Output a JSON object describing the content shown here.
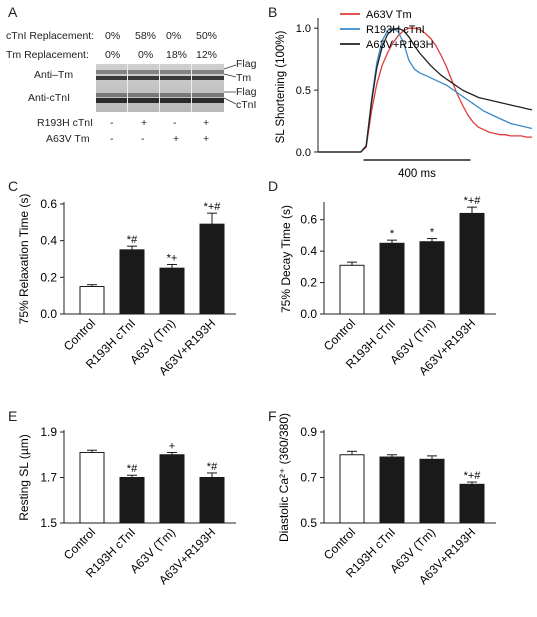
{
  "panels": {
    "A": "A",
    "B": "B",
    "C": "C",
    "D": "D",
    "E": "E",
    "F": "F"
  },
  "blot": {
    "rows": [
      {
        "label": "cTnI Replacement:",
        "values": [
          "0%",
          "58%",
          "0%",
          "50%"
        ]
      },
      {
        "label": "Tm Replacement:",
        "values": [
          "0%",
          "0%",
          "18%",
          "12%"
        ]
      }
    ],
    "band_labels_left": [
      "Anti–Tm",
      "Anti-cTnI"
    ],
    "band_labels_right": [
      "Flag",
      "Tm",
      "Flag",
      "cTnI"
    ],
    "mutants": [
      {
        "label": "R193H cTnI",
        "values": [
          "-",
          "+",
          "-",
          "+"
        ]
      },
      {
        "label": "A63V Tm",
        "values": [
          "-",
          "-",
          "+",
          "+"
        ]
      }
    ]
  },
  "chart_data": [
    {
      "panel": "B",
      "type": "line",
      "ylabel": "SL Shortening (100%)",
      "yticks": [
        "0.0",
        "0.5",
        "1.0"
      ],
      "ylim": [
        0,
        1.05
      ],
      "scale_bar_label": "400 ms",
      "series": [
        {
          "name": "A63V Tm",
          "color": "#e03a3a",
          "x": [
            0,
            100,
            140,
            160,
            180,
            200,
            220,
            240,
            260,
            280,
            300,
            320,
            340,
            360,
            380,
            400,
            420,
            440,
            460,
            480,
            500,
            520,
            540,
            560,
            580,
            600,
            620,
            640,
            660,
            680,
            700,
            720,
            740,
            760,
            780,
            800
          ],
          "y": [
            0,
            0,
            0,
            0,
            0.04,
            0.33,
            0.55,
            0.7,
            0.8,
            0.88,
            0.94,
            0.98,
            1.0,
            1.0,
            0.99,
            0.96,
            0.92,
            0.86,
            0.78,
            0.69,
            0.58,
            0.47,
            0.38,
            0.3,
            0.24,
            0.2,
            0.18,
            0.16,
            0.15,
            0.14,
            0.14,
            0.13,
            0.13,
            0.13,
            0.12,
            0.12
          ]
        },
        {
          "name": "R193H cTnI",
          "color": "#3a89c9",
          "x": [
            0,
            100,
            140,
            160,
            180,
            200,
            220,
            240,
            260,
            280,
            300,
            320,
            340,
            360,
            380,
            400,
            420,
            440,
            460,
            480,
            500,
            520,
            540,
            560,
            580,
            600,
            620,
            640,
            660,
            680,
            700,
            720,
            740,
            760,
            780,
            800
          ],
          "y": [
            0,
            0,
            0,
            0,
            0.05,
            0.42,
            0.72,
            0.9,
            0.98,
            1.0,
            0.97,
            0.88,
            0.74,
            0.67,
            0.64,
            0.62,
            0.6,
            0.58,
            0.56,
            0.54,
            0.51,
            0.48,
            0.45,
            0.42,
            0.39,
            0.36,
            0.33,
            0.31,
            0.29,
            0.27,
            0.25,
            0.23,
            0.22,
            0.21,
            0.2,
            0.19
          ]
        },
        {
          "name": "A63V+R193H",
          "color": "#222222",
          "x": [
            0,
            100,
            140,
            160,
            180,
            200,
            220,
            240,
            260,
            280,
            300,
            320,
            340,
            360,
            380,
            400,
            420,
            440,
            460,
            480,
            500,
            520,
            540,
            560,
            580,
            600,
            620,
            640,
            660,
            680,
            700,
            720,
            740,
            760,
            780,
            800
          ],
          "y": [
            0,
            0,
            0,
            0,
            0.05,
            0.4,
            0.68,
            0.85,
            0.95,
            0.99,
            1.0,
            0.98,
            0.93,
            0.86,
            0.8,
            0.75,
            0.7,
            0.66,
            0.62,
            0.59,
            0.56,
            0.53,
            0.5,
            0.48,
            0.46,
            0.44,
            0.43,
            0.42,
            0.41,
            0.4,
            0.39,
            0.38,
            0.37,
            0.36,
            0.35,
            0.34
          ]
        }
      ]
    },
    {
      "panel": "C",
      "type": "bar",
      "ylabel": "75% Relaxation Time (s)",
      "categories": [
        "Control",
        "R193H cTnI",
        "A63V (Tm)",
        "A63V+R193H"
      ],
      "values": [
        0.15,
        0.35,
        0.25,
        0.49
      ],
      "errors": [
        0.01,
        0.02,
        0.02,
        0.06
      ],
      "ylim": [
        0,
        0.6
      ],
      "yticks": [
        "0.0",
        "0.2",
        "0.4",
        "0.6"
      ],
      "significance": [
        "",
        "*#",
        "*+",
        "*+#"
      ]
    },
    {
      "panel": "D",
      "type": "bar",
      "ylabel": "75% Decay Time (s)",
      "categories": [
        "Control",
        "R193H cTnI",
        "A63V (Tm)",
        "A63V+R193H"
      ],
      "values": [
        0.31,
        0.45,
        0.46,
        0.64
      ],
      "errors": [
        0.02,
        0.02,
        0.02,
        0.04
      ],
      "ylim": [
        0,
        0.7
      ],
      "yticks": [
        "0.0",
        "0.2",
        "0.4",
        "0.6"
      ],
      "significance": [
        "",
        "*",
        "*",
        "*+#"
      ]
    },
    {
      "panel": "E",
      "type": "bar",
      "ylabel": "Resting SL (µm)",
      "categories": [
        "Control",
        "R193H cTnI",
        "A63V (Tm)",
        "A63V+R193H"
      ],
      "values": [
        1.81,
        1.7,
        1.8,
        1.7
      ],
      "errors": [
        0.01,
        0.01,
        0.01,
        0.02
      ],
      "ylim": [
        1.5,
        1.9
      ],
      "yticks": [
        "1.5",
        "1.7",
        "1.9"
      ],
      "significance": [
        "",
        "*#",
        "+",
        "*#"
      ]
    },
    {
      "panel": "F",
      "type": "bar",
      "ylabel": "Diastolic Ca²⁺ (360/380)",
      "categories": [
        "Control",
        "R193H cTnI",
        "A63V (Tm)",
        "A63V+R193H"
      ],
      "values": [
        0.8,
        0.79,
        0.78,
        0.67
      ],
      "errors": [
        0.015,
        0.01,
        0.015,
        0.01
      ],
      "ylim": [
        0.5,
        0.9
      ],
      "yticks": [
        "0.5",
        "0.7",
        "0.9"
      ],
      "significance": [
        "",
        "",
        "",
        "*+#"
      ]
    }
  ]
}
